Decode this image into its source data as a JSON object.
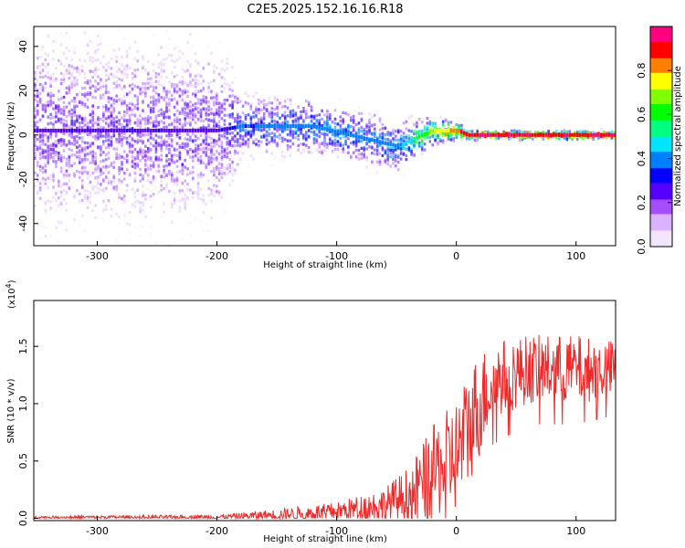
{
  "title": "C2E5.2025.152.16.16.R18",
  "chart_data": [
    {
      "type": "heatmap",
      "xlabel": "Height of straight line (km)",
      "ylabel": "Frequency (Hz)",
      "xlim": [
        -353,
        133
      ],
      "ylim": [
        -50,
        49
      ],
      "x_ticks": [
        -300,
        -200,
        -100,
        0,
        100
      ],
      "y_ticks": [
        -40,
        -20,
        0,
        20,
        40
      ],
      "colorbar": {
        "label": "Normalized spectral amplitude",
        "range": [
          0,
          1
        ],
        "ticks": [
          0.0,
          0.2,
          0.4,
          0.6,
          0.8
        ],
        "colors": [
          "#f2e6ff",
          "#d9b3ff",
          "#a64dff",
          "#5500ff",
          "#0000ff",
          "#0080ff",
          "#00e5ff",
          "#00ff80",
          "#00ff00",
          "#80ff00",
          "#ffff00",
          "#ff8000",
          "#ff0000",
          "#ff0080"
        ]
      },
      "description_points": [
        {
          "x": -353,
          "center": 2,
          "spread": 45,
          "amplitude": 0.25
        },
        {
          "x": -200,
          "center": 2,
          "spread": 40,
          "amplitude": 0.25
        },
        {
          "x": -180,
          "center": 4,
          "spread": 15,
          "amplitude": 0.35
        },
        {
          "x": -120,
          "center": 4,
          "spread": 12,
          "amplitude": 0.4
        },
        {
          "x": -50,
          "center": -5,
          "spread": 12,
          "amplitude": 0.4
        },
        {
          "x": -20,
          "center": 2,
          "spread": 6,
          "amplitude": 0.7
        },
        {
          "x": 0,
          "center": 2,
          "spread": 4,
          "amplitude": 0.85
        },
        {
          "x": 10,
          "center": 0,
          "spread": 2,
          "amplitude": 0.95
        },
        {
          "x": 133,
          "center": 0,
          "spread": 2,
          "amplitude": 0.95
        }
      ]
    },
    {
      "type": "line",
      "xlabel": "Height of straight line (km)",
      "ylabel": "SNR (10 * v/v)",
      "y_multiplier": "(x10",
      "y_multiplier_exp": "4",
      "y_multiplier_close": ")",
      "xlim": [
        -353,
        133
      ],
      "ylim": [
        -0.02,
        1.9
      ],
      "x_ticks": [
        -300,
        -200,
        -100,
        0,
        100
      ],
      "y_ticks": [
        0.0,
        0.5,
        1.0,
        1.5
      ],
      "y_tick_labels": [
        "0.0",
        "0.5",
        "1.0",
        "1.5"
      ],
      "color": "#ee2a2a",
      "envelope": [
        {
          "x": -353,
          "mean": 0.01,
          "amp": 0.01
        },
        {
          "x": -200,
          "mean": 0.01,
          "amp": 0.02
        },
        {
          "x": -150,
          "mean": 0.03,
          "amp": 0.05
        },
        {
          "x": -100,
          "mean": 0.06,
          "amp": 0.08
        },
        {
          "x": -60,
          "mean": 0.12,
          "amp": 0.15
        },
        {
          "x": -40,
          "mean": 0.2,
          "amp": 0.25
        },
        {
          "x": -20,
          "mean": 0.4,
          "amp": 0.4
        },
        {
          "x": 0,
          "mean": 0.55,
          "amp": 0.5
        },
        {
          "x": 15,
          "mean": 0.9,
          "amp": 0.5
        },
        {
          "x": 30,
          "mean": 1.2,
          "amp": 0.35
        },
        {
          "x": 60,
          "mean": 1.3,
          "amp": 0.3
        },
        {
          "x": 100,
          "mean": 1.3,
          "amp": 0.3
        },
        {
          "x": 133,
          "mean": 1.3,
          "amp": 0.25
        }
      ]
    }
  ]
}
